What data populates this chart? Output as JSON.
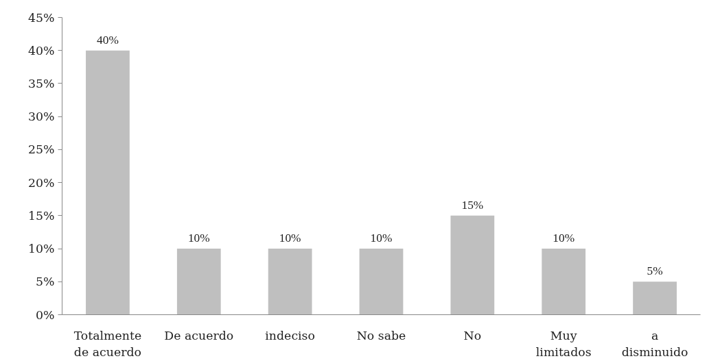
{
  "chart_data": {
    "type": "bar",
    "categories": [
      "Totalmente de acuerdo",
      "De acuerdo",
      "indeciso",
      "No sabe",
      "No",
      "Muy limitados",
      "a disminuido"
    ],
    "values": [
      40,
      10,
      10,
      10,
      15,
      10,
      5
    ],
    "value_labels": [
      "40%",
      "10%",
      "10%",
      "10%",
      "15%",
      "10%",
      "5%"
    ],
    "color": "#bfbfbf",
    "ylim": [
      0,
      45
    ],
    "yticks": [
      {
        "value": 0,
        "label": "0%"
      },
      {
        "value": 5,
        "label": "5%"
      },
      {
        "value": 10,
        "label": "10%"
      },
      {
        "value": 15,
        "label": "15%"
      },
      {
        "value": 20,
        "label": "20%"
      },
      {
        "value": 25,
        "label": "25%"
      },
      {
        "value": 30,
        "label": "30%"
      },
      {
        "value": 35,
        "label": "35%"
      },
      {
        "value": 40,
        "label": "40%"
      },
      {
        "value": 45,
        "label": "45%"
      }
    ],
    "grid": false
  }
}
